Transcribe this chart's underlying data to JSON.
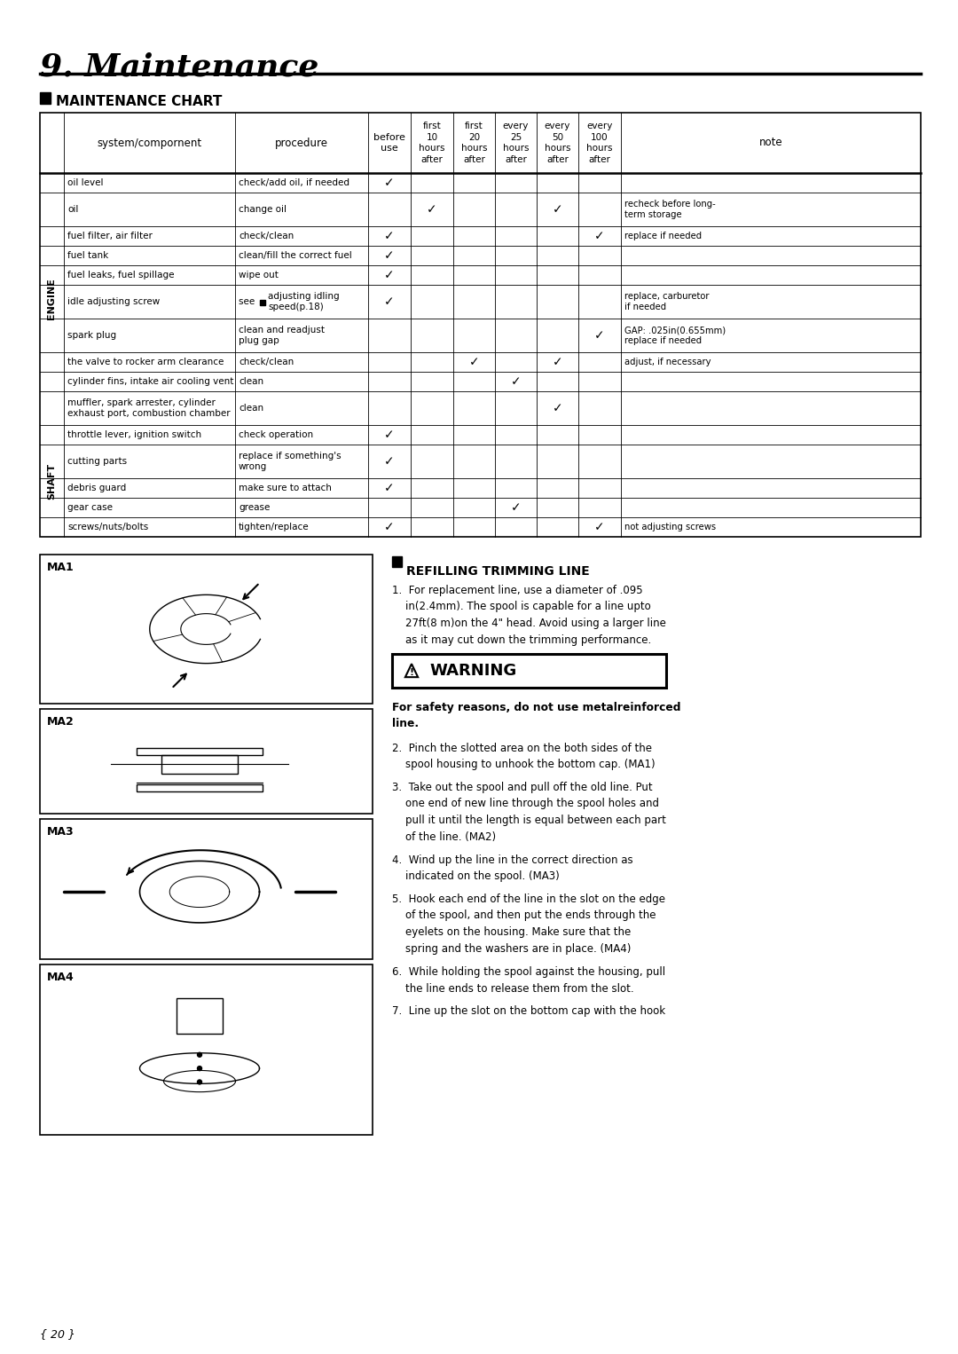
{
  "title": "9. Maintenance",
  "section_title": "MAINTENANCE CHART",
  "rows": [
    {
      "section": "ENGINE",
      "component": "oil level",
      "procedure": "check/add oil, if needed",
      "checks": [
        1,
        0,
        0,
        0,
        0,
        0
      ],
      "note": ""
    },
    {
      "section": "",
      "component": "oil",
      "procedure": "change oil",
      "checks": [
        0,
        1,
        0,
        0,
        1,
        0
      ],
      "note": "recheck before long-\nterm storage"
    },
    {
      "section": "",
      "component": "fuel filter, air filter",
      "procedure": "check/clean",
      "checks": [
        1,
        0,
        0,
        0,
        0,
        1
      ],
      "note": "replace if needed"
    },
    {
      "section": "",
      "component": "fuel tank",
      "procedure": "clean/fill the correct fuel",
      "checks": [
        1,
        0,
        0,
        0,
        0,
        0
      ],
      "note": ""
    },
    {
      "section": "",
      "component": "fuel leaks, fuel spillage",
      "procedure": "wipe out",
      "checks": [
        1,
        0,
        0,
        0,
        0,
        0
      ],
      "note": ""
    },
    {
      "section": "",
      "component": "idle adjusting screw",
      "procedure": "see_sq_adjusting idling\nspeed(p.18)",
      "checks": [
        1,
        0,
        0,
        0,
        0,
        0
      ],
      "note": "replace, carburetor\nif needed"
    },
    {
      "section": "",
      "component": "spark plug",
      "procedure": "clean and readjust\nplug gap",
      "checks": [
        0,
        0,
        0,
        0,
        0,
        1
      ],
      "note": "GAP: .025in(0.655mm)\nreplace if needed"
    },
    {
      "section": "",
      "component": "the valve to rocker arm clearance",
      "procedure": "check/clean",
      "checks": [
        0,
        0,
        1,
        0,
        1,
        0
      ],
      "note": "adjust, if necessary"
    },
    {
      "section": "",
      "component": "cylinder fins, intake air cooling vent",
      "procedure": "clean",
      "checks": [
        0,
        0,
        0,
        1,
        0,
        0
      ],
      "note": ""
    },
    {
      "section": "",
      "component": "muffler, spark arrester, cylinder\nexhaust port, combustion chamber",
      "procedure": "clean",
      "checks": [
        0,
        0,
        0,
        0,
        1,
        0
      ],
      "note": ""
    },
    {
      "section": "SHAFT",
      "component": "throttle lever, ignition switch",
      "procedure": "check operation",
      "checks": [
        1,
        0,
        0,
        0,
        0,
        0
      ],
      "note": ""
    },
    {
      "section": "",
      "component": "cutting parts",
      "procedure": "replace if something's\nwrong",
      "checks": [
        1,
        0,
        0,
        0,
        0,
        0
      ],
      "note": ""
    },
    {
      "section": "",
      "component": "debris guard",
      "procedure": "make sure to attach",
      "checks": [
        1,
        0,
        0,
        0,
        0,
        0
      ],
      "note": ""
    },
    {
      "section": "",
      "component": "gear case",
      "procedure": "grease",
      "checks": [
        0,
        0,
        0,
        1,
        0,
        0
      ],
      "note": ""
    },
    {
      "section": "",
      "component": "screws/nuts/bolts",
      "procedure": "tighten/replace",
      "checks": [
        1,
        0,
        0,
        0,
        0,
        1
      ],
      "note": "not adjusting screws"
    }
  ],
  "ma_labels": [
    "MA1",
    "MA2",
    "MA3",
    "MA4"
  ],
  "refilling_title": "REFILLING TRIMMING LINE",
  "warning_text": "For safety reasons, do not use metalreinforced\nline.",
  "items": [
    "1.  For replacement line, use a diameter of .095\n    in(2.4mm). The spool is capable for a line upto\n    27ft(8 m)on the 4\" head. Avoid using a larger line\n    as it may cut down the trimming performance.",
    "2.  Pinch the slotted area on the both sides of the\n    spool housing to unhook the bottom cap. (MA1)",
    "3.  Take out the spool and pull off the old line. Put\n    one end of new line through the spool holes and\n    pull it until the length is equal between each part\n    of the line. (MA2)",
    "4.  Wind up the line in the correct direction as\n    indicated on the spool. (MA3)",
    "5.  Hook each end of the line in the slot on the edge\n    of the spool, and then put the ends through the\n    eyelets on the housing. Make sure that the\n    spring and the washers are in place. (MA4)",
    "6.  While holding the spool against the housing, pull\n    the line ends to release them from the slot.",
    "7.  Line up the slot on the bottom cap with the hook"
  ],
  "page_number": "{ 20 }",
  "bg_color": "#ffffff"
}
